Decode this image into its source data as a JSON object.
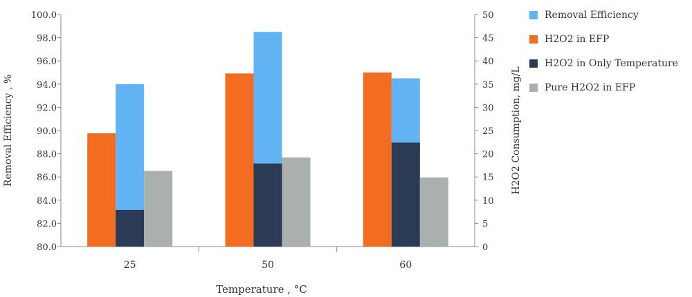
{
  "chart_data": {
    "type": "bar",
    "xlabel": "Temperature , °C",
    "ylabel_left": "Removal Efficiency , %",
    "ylabel_right": "H2O2 Consumption, mg/L",
    "categories": [
      "25",
      "50",
      "60"
    ],
    "ylim_left": [
      80.0,
      100.0
    ],
    "yticks_left": [
      "80.0",
      "82.0",
      "84.0",
      "86.0",
      "88.0",
      "90.0",
      "92.0",
      "94.0",
      "96.0",
      "98.0",
      "100.0"
    ],
    "ylim_right": [
      0,
      50
    ],
    "yticks_right": [
      "0",
      "5",
      "10",
      "15",
      "20",
      "25",
      "30",
      "35",
      "40",
      "45",
      "50"
    ],
    "series": [
      {
        "name": "Removal Efficiency",
        "axis": "left",
        "color": "#62b3f3",
        "values": [
          94.0,
          98.5,
          94.5
        ]
      },
      {
        "name": "H2O2 in EFP",
        "axis": "right",
        "color": "#f26d21",
        "values": [
          24.4,
          37.3,
          37.5
        ]
      },
      {
        "name": "H2O2 in Only Temperature",
        "axis": "right",
        "color": "#2b3b55",
        "values": [
          7.9,
          17.9,
          22.4
        ]
      },
      {
        "name": "Pure H2O2 in EFP",
        "axis": "right",
        "color": "#a9b0ae",
        "values": [
          16.3,
          19.2,
          14.9
        ]
      }
    ],
    "legend_position": "right",
    "grid": false
  }
}
